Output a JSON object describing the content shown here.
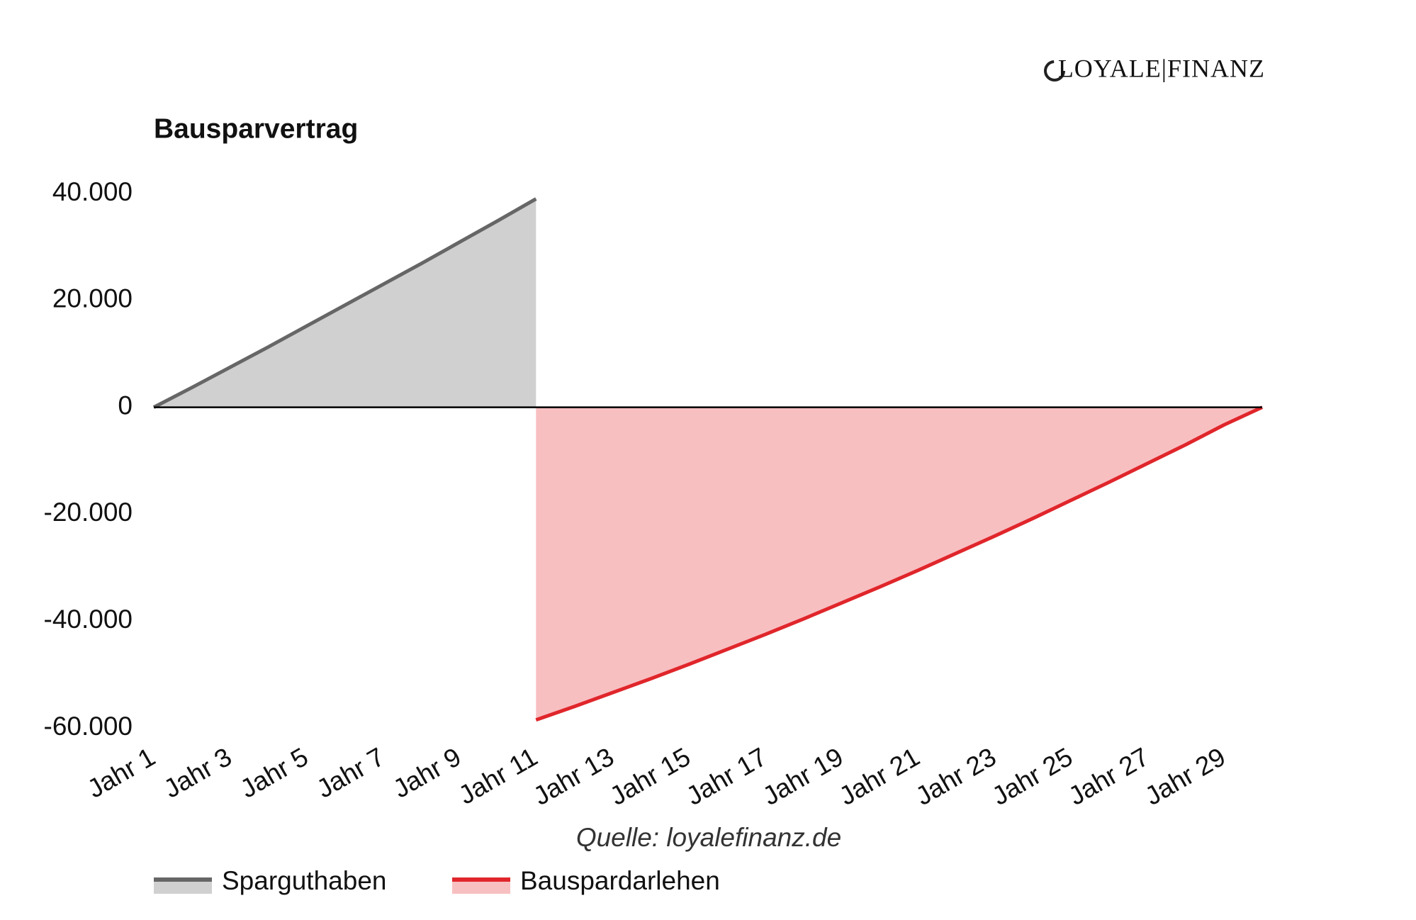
{
  "logo": "LOYALE|FINANZ",
  "chart_data": {
    "type": "area",
    "title": "Bausparvertrag",
    "source": "Quelle: loyalefinanz.de",
    "categories": [
      "Jahr 1",
      null,
      "Jahr 3",
      null,
      "Jahr 5",
      null,
      "Jahr 7",
      null,
      "Jahr 9",
      null,
      "Jahr 11",
      null,
      "Jahr 13",
      null,
      "Jahr 15",
      null,
      "Jahr 17",
      null,
      "Jahr 19",
      null,
      "Jahr 21",
      null,
      "Jahr 23",
      null,
      "Jahr 25",
      null,
      "Jahr 27",
      null,
      "Jahr 29",
      null
    ],
    "series": [
      {
        "name": "Sparguthaben",
        "color": "#666666",
        "fill": "#d0d0d0",
        "values": [
          0,
          3700,
          7500,
          11300,
          15200,
          19100,
          23000,
          26900,
          30900,
          34900,
          39000,
          null,
          null,
          null,
          null,
          null,
          null,
          null,
          null,
          null,
          null,
          null,
          null,
          null,
          null,
          null,
          null,
          null,
          null,
          null
        ]
      },
      {
        "name": "Bauspardarlehen",
        "color": "#e0262b",
        "fill": "#f8bfc1",
        "values": [
          null,
          null,
          null,
          null,
          null,
          null,
          null,
          null,
          null,
          null,
          -58500,
          -56000,
          -53400,
          -50800,
          -48100,
          -45300,
          -42500,
          -39600,
          -36600,
          -33600,
          -30500,
          -27300,
          -24100,
          -20800,
          -17400,
          -14000,
          -10500,
          -7000,
          -3300,
          0
        ]
      }
    ],
    "ylim": [
      -60000,
      40000
    ],
    "yticks": [
      {
        "value": -60000,
        "label": "-60.000"
      },
      {
        "value": -40000,
        "label": "-40.000"
      },
      {
        "value": -20000,
        "label": "-20.000"
      },
      0,
      {
        "value": 20000,
        "label": "20.000"
      },
      {
        "value": 40000,
        "label": "40.000"
      }
    ],
    "grid": false,
    "legend": "bottom-left"
  }
}
